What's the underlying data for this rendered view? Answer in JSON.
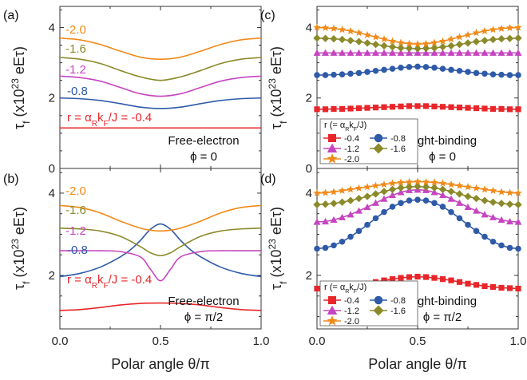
{
  "chart_data": [
    {
      "panel": "(a)",
      "type": "line",
      "x_tick_labels": [
        "0.0",
        "0.5",
        "1.0"
      ],
      "y_tick_labels": [
        "0",
        "2",
        "4"
      ],
      "xlim": [
        0,
        1
      ],
      "ylim": [
        0,
        4.6
      ],
      "annotation_lines": [
        "Free-electron",
        "ϕ = 0"
      ],
      "label_prefix": "r = α",
      "label_sub": "R",
      "label_mid": "k",
      "label_sub2": "F",
      "label_suffix": "/J = ",
      "series": [
        {
          "name": "-0.4",
          "color": "#e8262a",
          "x": [
            0,
            0.25,
            0.5,
            0.75,
            1.0
          ],
          "y": [
            1.15,
            1.15,
            1.15,
            1.15,
            1.15
          ]
        },
        {
          "name": "-0.8",
          "color": "#2f5aa8",
          "x": [
            0,
            0.1,
            0.2,
            0.3,
            0.4,
            0.5,
            0.6,
            0.7,
            0.8,
            0.9,
            1.0
          ],
          "y": [
            2.0,
            1.98,
            1.93,
            1.84,
            1.74,
            1.7,
            1.74,
            1.84,
            1.93,
            1.98,
            2.0
          ]
        },
        {
          "name": "-1.2",
          "color": "#c545c0",
          "x": [
            0,
            0.1,
            0.2,
            0.3,
            0.4,
            0.5,
            0.6,
            0.7,
            0.8,
            0.9,
            1.0
          ],
          "y": [
            2.62,
            2.58,
            2.48,
            2.3,
            2.12,
            2.05,
            2.12,
            2.3,
            2.48,
            2.58,
            2.62
          ]
        },
        {
          "name": "-1.6",
          "color": "#8a8a2a",
          "x": [
            0,
            0.1,
            0.2,
            0.3,
            0.4,
            0.5,
            0.6,
            0.7,
            0.8,
            0.9,
            1.0
          ],
          "y": [
            3.15,
            3.1,
            2.98,
            2.78,
            2.6,
            2.5,
            2.6,
            2.78,
            2.98,
            3.1,
            3.15
          ]
        },
        {
          "name": "-2.0",
          "color": "#f08a1a",
          "x": [
            0,
            0.1,
            0.2,
            0.3,
            0.4,
            0.5,
            0.6,
            0.7,
            0.8,
            0.9,
            1.0
          ],
          "y": [
            3.7,
            3.65,
            3.52,
            3.33,
            3.16,
            3.1,
            3.16,
            3.33,
            3.52,
            3.65,
            3.7
          ]
        }
      ]
    },
    {
      "panel": "(b)",
      "type": "line",
      "x_tick_labels": [
        "0.0",
        "0.5",
        "1.0"
      ],
      "y_tick_labels": [
        "2",
        "4"
      ],
      "xlim": [
        0,
        1
      ],
      "ylim": [
        0.7,
        4.6
      ],
      "annotation_lines": [
        "Free-electron",
        "ϕ = π/2"
      ],
      "label_prefix": "r = α",
      "label_sub": "R",
      "label_mid": "k",
      "label_sub2": "F",
      "label_suffix": "/J = ",
      "series": [
        {
          "name": "-0.4",
          "color": "#e8262a",
          "x": [
            0,
            0.1,
            0.2,
            0.3,
            0.4,
            0.5,
            0.6,
            0.7,
            0.8,
            0.9,
            1.0
          ],
          "y": [
            1.15,
            1.17,
            1.22,
            1.28,
            1.32,
            1.33,
            1.32,
            1.28,
            1.22,
            1.17,
            1.15
          ]
        },
        {
          "name": "-0.8",
          "color": "#2f5aa8",
          "x": [
            0,
            0.1,
            0.2,
            0.3,
            0.35,
            0.4,
            0.45,
            0.5,
            0.55,
            0.6,
            0.65,
            0.7,
            0.8,
            0.9,
            1.0
          ],
          "y": [
            1.97,
            2.05,
            2.2,
            2.45,
            2.62,
            2.85,
            3.12,
            3.25,
            3.12,
            2.85,
            2.62,
            2.45,
            2.2,
            2.05,
            1.97
          ]
        },
        {
          "name": "-1.2",
          "color": "#c545c0",
          "x": [
            0,
            0.1,
            0.2,
            0.3,
            0.4,
            0.45,
            0.5,
            0.55,
            0.6,
            0.7,
            0.8,
            0.9,
            1.0
          ],
          "y": [
            2.6,
            2.6,
            2.6,
            2.58,
            2.45,
            2.15,
            1.87,
            2.15,
            2.45,
            2.58,
            2.6,
            2.6,
            2.6
          ]
        },
        {
          "name": "-1.6",
          "color": "#8a8a2a",
          "x": [
            0,
            0.1,
            0.2,
            0.3,
            0.4,
            0.45,
            0.5,
            0.55,
            0.6,
            0.7,
            0.8,
            0.9,
            1.0
          ],
          "y": [
            3.15,
            3.13,
            3.08,
            2.95,
            2.7,
            2.55,
            2.48,
            2.55,
            2.7,
            2.95,
            3.08,
            3.13,
            3.15
          ]
        },
        {
          "name": "-2.0",
          "color": "#f08a1a",
          "x": [
            0,
            0.1,
            0.2,
            0.3,
            0.4,
            0.45,
            0.5,
            0.55,
            0.6,
            0.7,
            0.8,
            0.9,
            1.0
          ],
          "y": [
            3.7,
            3.65,
            3.52,
            3.32,
            3.15,
            3.1,
            3.08,
            3.1,
            3.15,
            3.32,
            3.52,
            3.65,
            3.7
          ]
        }
      ]
    },
    {
      "panel": "(c)",
      "type": "line",
      "x_tick_labels": [
        "0.0",
        "0.5",
        "1.0"
      ],
      "y_tick_labels": [
        "0",
        "2",
        "4"
      ],
      "xlim": [
        0,
        1
      ],
      "ylim": [
        0,
        4.6
      ],
      "annotation_lines": [
        "Tight-binding",
        "ϕ = 0"
      ],
      "legend_title": "r (= α",
      "legend_title_sub": "R",
      "legend_title_mid": "k",
      "legend_title_sub2": "F",
      "legend_title_end": "/J)",
      "series": [
        {
          "name": "-0.4",
          "color": "#e8262a",
          "marker": "square",
          "x": [
            0,
            0.0417,
            0.0833,
            0.125,
            0.1667,
            0.2083,
            0.25,
            0.2917,
            0.3333,
            0.375,
            0.4167,
            0.4583,
            0.5,
            0.5417,
            0.5833,
            0.625,
            0.6667,
            0.7083,
            0.75,
            0.7917,
            0.8333,
            0.875,
            0.9167,
            0.9583,
            1.0
          ],
          "y": [
            1.68,
            1.68,
            1.69,
            1.69,
            1.7,
            1.71,
            1.72,
            1.73,
            1.74,
            1.75,
            1.76,
            1.77,
            1.77,
            1.77,
            1.76,
            1.75,
            1.74,
            1.73,
            1.72,
            1.71,
            1.7,
            1.69,
            1.69,
            1.68,
            1.68
          ]
        },
        {
          "name": "-0.8",
          "color": "#2f5aa8",
          "marker": "circle",
          "x": [
            0,
            0.0417,
            0.0833,
            0.125,
            0.1667,
            0.2083,
            0.25,
            0.2917,
            0.3333,
            0.375,
            0.4167,
            0.4583,
            0.5,
            0.5417,
            0.5833,
            0.625,
            0.6667,
            0.7083,
            0.75,
            0.7917,
            0.8333,
            0.875,
            0.9167,
            0.9583,
            1.0
          ],
          "y": [
            2.65,
            2.65,
            2.66,
            2.67,
            2.69,
            2.71,
            2.74,
            2.77,
            2.8,
            2.83,
            2.86,
            2.88,
            2.89,
            2.88,
            2.86,
            2.83,
            2.8,
            2.77,
            2.74,
            2.71,
            2.69,
            2.67,
            2.66,
            2.65,
            2.65
          ]
        },
        {
          "name": "-1.2",
          "color": "#c545c0",
          "marker": "triangle",
          "x": [
            0,
            0.0417,
            0.0833,
            0.125,
            0.1667,
            0.2083,
            0.25,
            0.2917,
            0.3333,
            0.375,
            0.4167,
            0.4583,
            0.5,
            0.5417,
            0.5833,
            0.625,
            0.6667,
            0.7083,
            0.75,
            0.7917,
            0.8333,
            0.875,
            0.9167,
            0.9583,
            1.0
          ],
          "y": [
            3.28,
            3.28,
            3.28,
            3.28,
            3.28,
            3.28,
            3.28,
            3.28,
            3.28,
            3.28,
            3.28,
            3.28,
            3.28,
            3.28,
            3.28,
            3.28,
            3.28,
            3.28,
            3.28,
            3.28,
            3.28,
            3.28,
            3.28,
            3.28,
            3.28
          ]
        },
        {
          "name": "-1.6",
          "color": "#8a8a2a",
          "marker": "diamond",
          "x": [
            0,
            0.0417,
            0.0833,
            0.125,
            0.1667,
            0.2083,
            0.25,
            0.2917,
            0.3333,
            0.375,
            0.4167,
            0.4583,
            0.5,
            0.5417,
            0.5833,
            0.625,
            0.6667,
            0.7083,
            0.75,
            0.7917,
            0.8333,
            0.875,
            0.9167,
            0.9583,
            1.0
          ],
          "y": [
            3.7,
            3.69,
            3.68,
            3.66,
            3.63,
            3.6,
            3.56,
            3.52,
            3.48,
            3.45,
            3.42,
            3.41,
            3.4,
            3.41,
            3.42,
            3.45,
            3.48,
            3.52,
            3.56,
            3.6,
            3.63,
            3.66,
            3.68,
            3.69,
            3.7
          ]
        },
        {
          "name": "-2.0",
          "color": "#f08a1a",
          "marker": "star",
          "x": [
            0,
            0.0417,
            0.0833,
            0.125,
            0.1667,
            0.2083,
            0.25,
            0.2917,
            0.3333,
            0.375,
            0.4167,
            0.4583,
            0.5,
            0.5417,
            0.5833,
            0.625,
            0.6667,
            0.7083,
            0.75,
            0.7917,
            0.8333,
            0.875,
            0.9167,
            0.9583,
            1.0
          ],
          "y": [
            4.0,
            3.99,
            3.97,
            3.94,
            3.9,
            3.85,
            3.79,
            3.73,
            3.67,
            3.61,
            3.57,
            3.54,
            3.53,
            3.54,
            3.57,
            3.61,
            3.67,
            3.73,
            3.79,
            3.85,
            3.9,
            3.94,
            3.97,
            3.99,
            4.0
          ]
        }
      ]
    },
    {
      "panel": "(d)",
      "type": "line",
      "x_tick_labels": [
        "0.0",
        "0.5",
        "1.0"
      ],
      "y_tick_labels": [
        "2",
        "4"
      ],
      "xlim": [
        0,
        1
      ],
      "ylim": [
        0.7,
        4.6
      ],
      "annotation_lines": [
        "Tight-binding",
        "ϕ = π/2"
      ],
      "legend_title": "r (= α",
      "legend_title_sub": "R",
      "legend_title_mid": "k",
      "legend_title_sub2": "F",
      "legend_title_end": "/J)",
      "series": [
        {
          "name": "-0.4",
          "color": "#e8262a",
          "marker": "square",
          "x": [
            0,
            0.0417,
            0.0833,
            0.125,
            0.1667,
            0.2083,
            0.25,
            0.2917,
            0.3333,
            0.375,
            0.4167,
            0.4583,
            0.5,
            0.5417,
            0.5833,
            0.625,
            0.6667,
            0.7083,
            0.75,
            0.7917,
            0.8333,
            0.875,
            0.9167,
            0.9583,
            1.0
          ],
          "y": [
            1.68,
            1.69,
            1.7,
            1.72,
            1.74,
            1.77,
            1.8,
            1.84,
            1.88,
            1.91,
            1.94,
            1.96,
            1.97,
            1.96,
            1.94,
            1.91,
            1.88,
            1.84,
            1.8,
            1.77,
            1.74,
            1.72,
            1.7,
            1.69,
            1.68
          ]
        },
        {
          "name": "-0.8",
          "color": "#2f5aa8",
          "marker": "circle",
          "x": [
            0,
            0.0417,
            0.0833,
            0.125,
            0.1667,
            0.2083,
            0.25,
            0.2917,
            0.3333,
            0.375,
            0.4167,
            0.4583,
            0.5,
            0.5417,
            0.5833,
            0.625,
            0.6667,
            0.7083,
            0.75,
            0.7917,
            0.8333,
            0.875,
            0.9167,
            0.9583,
            1.0
          ],
          "y": [
            2.65,
            2.67,
            2.73,
            2.82,
            2.94,
            3.08,
            3.23,
            3.39,
            3.54,
            3.67,
            3.76,
            3.82,
            3.84,
            3.82,
            3.76,
            3.67,
            3.54,
            3.39,
            3.23,
            3.08,
            2.94,
            2.82,
            2.73,
            2.67,
            2.65
          ]
        },
        {
          "name": "-1.2",
          "color": "#c545c0",
          "marker": "triangle",
          "x": [
            0,
            0.0417,
            0.0833,
            0.125,
            0.1667,
            0.2083,
            0.25,
            0.2917,
            0.3333,
            0.375,
            0.4167,
            0.4583,
            0.5,
            0.5417,
            0.5833,
            0.625,
            0.6667,
            0.7083,
            0.75,
            0.7917,
            0.8333,
            0.875,
            0.9167,
            0.9583,
            1.0
          ],
          "y": [
            3.3,
            3.31,
            3.35,
            3.41,
            3.48,
            3.57,
            3.66,
            3.76,
            3.86,
            3.95,
            4.02,
            4.07,
            4.08,
            4.07,
            4.02,
            3.95,
            3.86,
            3.76,
            3.66,
            3.57,
            3.48,
            3.41,
            3.35,
            3.31,
            3.3
          ]
        },
        {
          "name": "-1.6",
          "color": "#8a8a2a",
          "marker": "diamond",
          "x": [
            0,
            0.0417,
            0.0833,
            0.125,
            0.1667,
            0.2083,
            0.25,
            0.2917,
            0.3333,
            0.375,
            0.4167,
            0.4583,
            0.5,
            0.5417,
            0.5833,
            0.625,
            0.6667,
            0.7083,
            0.75,
            0.7917,
            0.8333,
            0.875,
            0.9167,
            0.9583,
            1.0
          ],
          "y": [
            3.72,
            3.73,
            3.75,
            3.78,
            3.82,
            3.87,
            3.92,
            3.98,
            4.04,
            4.09,
            4.13,
            4.15,
            4.16,
            4.15,
            4.13,
            4.09,
            4.04,
            3.98,
            3.92,
            3.87,
            3.82,
            3.78,
            3.75,
            3.73,
            3.72
          ]
        },
        {
          "name": "-2.0",
          "color": "#f08a1a",
          "marker": "star",
          "x": [
            0,
            0.0417,
            0.0833,
            0.125,
            0.1667,
            0.2083,
            0.25,
            0.2917,
            0.3333,
            0.375,
            0.4167,
            0.4583,
            0.5,
            0.5417,
            0.5833,
            0.625,
            0.6667,
            0.7083,
            0.75,
            0.7917,
            0.8333,
            0.875,
            0.9167,
            0.9583,
            1.0
          ],
          "y": [
            4.0,
            4.01,
            4.03,
            4.06,
            4.09,
            4.12,
            4.15,
            4.18,
            4.21,
            4.24,
            4.26,
            4.27,
            4.28,
            4.27,
            4.26,
            4.24,
            4.21,
            4.18,
            4.15,
            4.12,
            4.09,
            4.06,
            4.03,
            4.01,
            4.0
          ]
        }
      ]
    }
  ],
  "shared": {
    "xlabel": "Polar angle θ/π",
    "ylabel_main": "τ",
    "ylabel_sub": "f",
    "ylabel_paren_open": " (x10",
    "ylabel_sup": "23",
    "ylabel_unit": " eEτ)"
  }
}
